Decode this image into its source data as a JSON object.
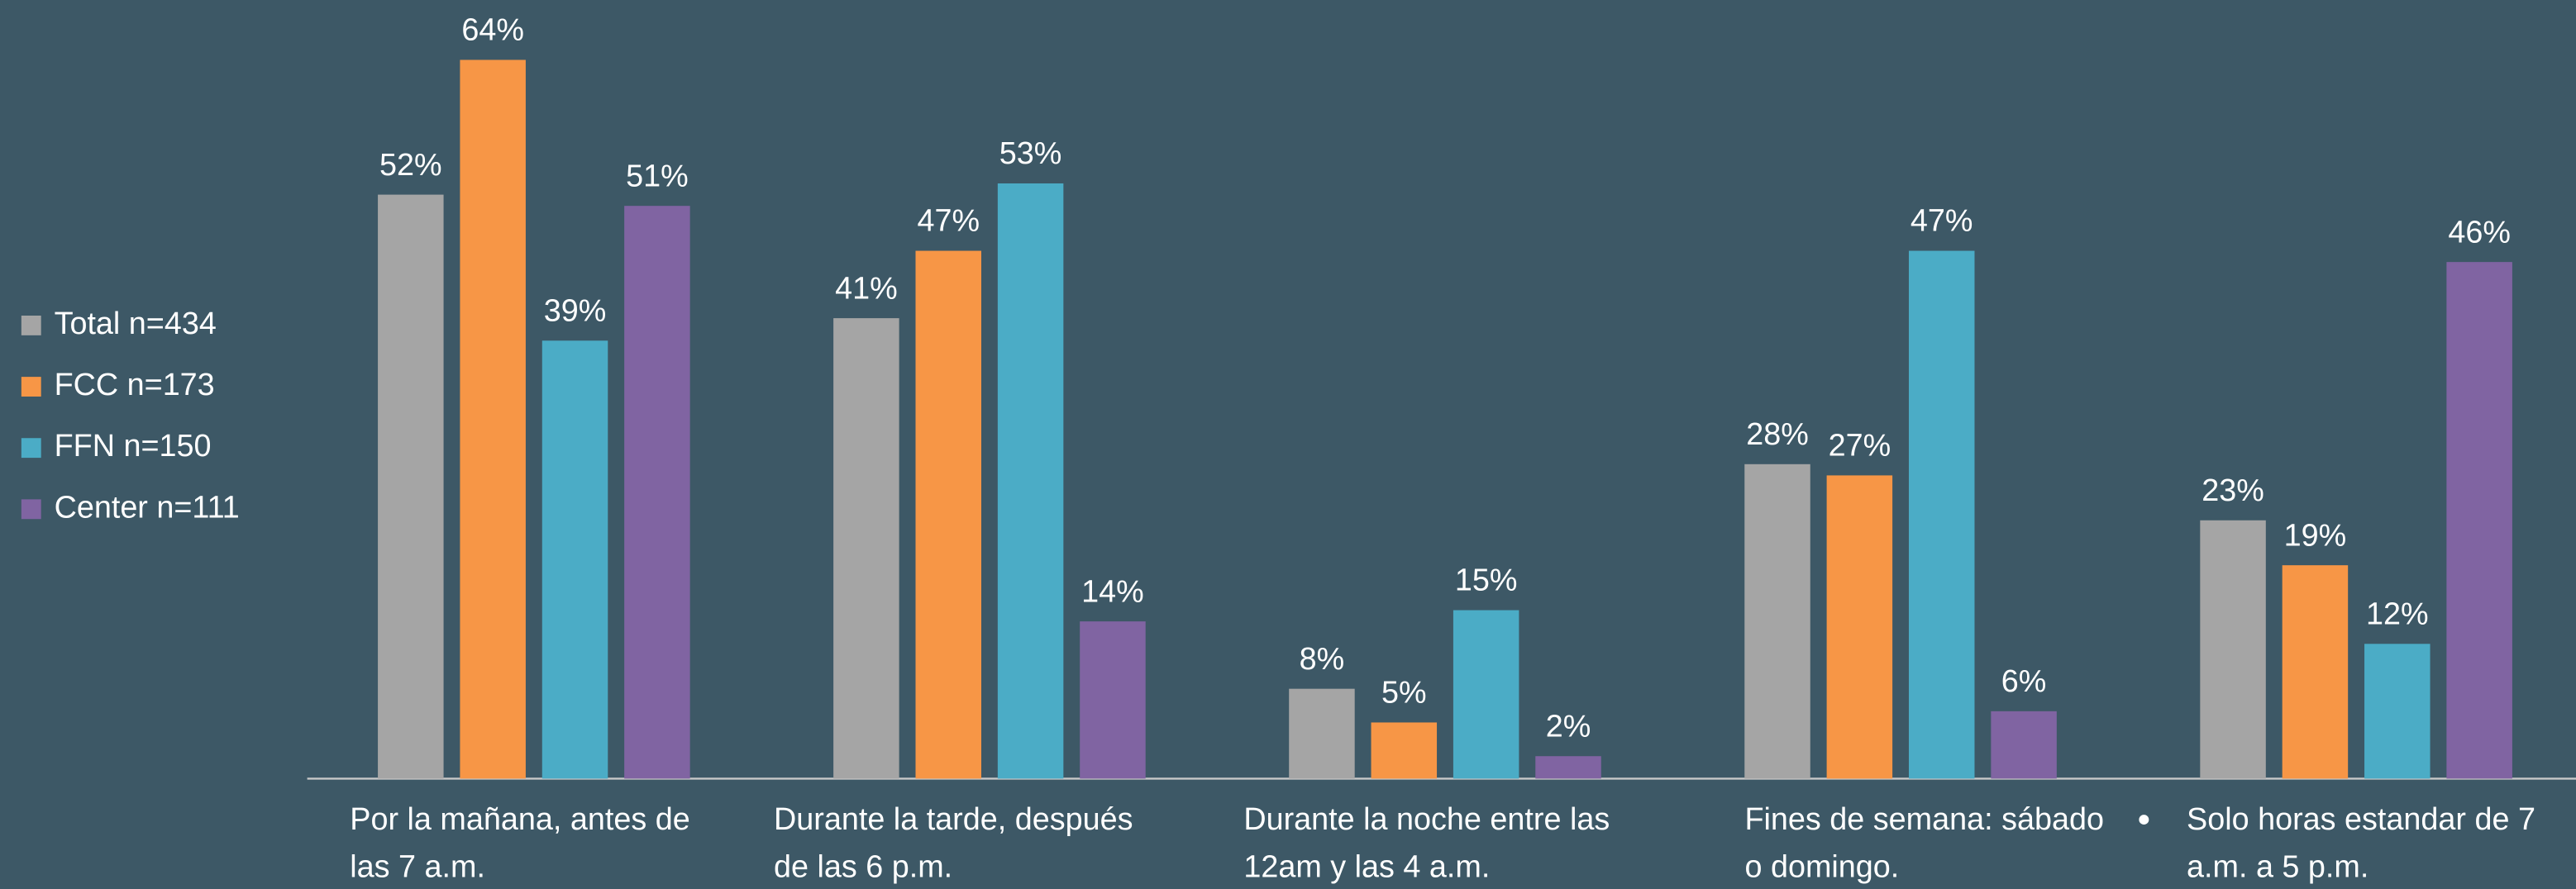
{
  "chart_data": {
    "type": "bar",
    "categories": [
      "Por la mañana, antes de las 7 a.m.",
      "Durante la tarde, después de las 6 p.m.",
      "Durante la noche entre las 12am y las 4 a.m.",
      "Fines de semana: sábado o domingo.",
      "Solo horas estandar de 7 a.m. a 5 p.m."
    ],
    "series": [
      {
        "name": "Total n=434",
        "color": "#a5a5a5",
        "values": [
          52,
          41,
          8,
          28,
          23
        ],
        "value_labels": [
          "52%",
          "41%",
          "8%",
          "28%",
          "23%"
        ]
      },
      {
        "name": "FCC n=173",
        "color": "#f79646",
        "values": [
          64,
          47,
          5,
          27,
          19
        ],
        "value_labels": [
          "64%",
          "47%",
          "5%",
          "27%",
          "19%"
        ]
      },
      {
        "name": "FFN n=150",
        "color": "#4bacc6",
        "values": [
          39,
          53,
          15,
          47,
          12
        ],
        "value_labels": [
          "39%",
          "53%",
          "15%",
          "47%",
          "12%"
        ]
      },
      {
        "name": "Center n=111",
        "color": "#8064a2",
        "values": [
          51,
          14,
          2,
          6,
          46
        ],
        "value_labels": [
          "51%",
          "14%",
          "2%",
          "6%",
          "46%"
        ]
      }
    ],
    "legend": "left"
  }
}
